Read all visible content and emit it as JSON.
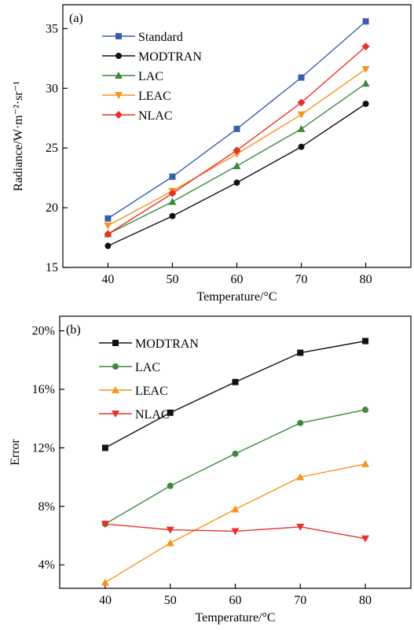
{
  "chart_data": [
    {
      "type": "line",
      "panel_label": "(a)",
      "x": [
        40,
        50,
        60,
        70,
        80
      ],
      "xlabel": "Temperature/°C",
      "ylabel": "Radiance/W·m⁻²·sr⁻¹",
      "xlim": [
        33,
        87
      ],
      "ylim": [
        15,
        37
      ],
      "xticks": [
        40,
        50,
        60,
        70,
        80
      ],
      "yticks": [
        15,
        20,
        25,
        30,
        35
      ],
      "ytick_labels": [
        "15",
        "20",
        "25",
        "30",
        "35"
      ],
      "legend_position": "top-left",
      "grid": false,
      "series": [
        {
          "name": "Standard",
          "color": "#3a5db0",
          "marker": "square",
          "values": [
            19.1,
            22.6,
            26.6,
            30.9,
            35.6
          ]
        },
        {
          "name": "MODTRAN",
          "color": "#111111",
          "marker": "circle",
          "values": [
            16.8,
            19.3,
            22.1,
            25.1,
            28.7
          ]
        },
        {
          "name": "LAC",
          "color": "#3d8a3d",
          "marker": "triangle-up",
          "values": [
            17.8,
            20.5,
            23.5,
            26.6,
            30.4
          ]
        },
        {
          "name": "LEAC",
          "color": "#f7941d",
          "marker": "triangle-down",
          "values": [
            18.5,
            21.4,
            24.5,
            27.8,
            31.6
          ]
        },
        {
          "name": "NLAC",
          "color": "#e8302a",
          "marker": "diamond",
          "values": [
            17.8,
            21.2,
            24.8,
            28.8,
            33.5
          ]
        }
      ]
    },
    {
      "type": "line",
      "panel_label": "(b)",
      "x": [
        40,
        50,
        60,
        70,
        80
      ],
      "xlabel": "Temperature/°C",
      "ylabel": "Error",
      "xlim": [
        33,
        87
      ],
      "ylim": [
        2.4,
        21.0
      ],
      "xticks": [
        40,
        50,
        60,
        70,
        80
      ],
      "yticks": [
        4,
        8,
        12,
        16,
        20
      ],
      "ytick_labels": [
        "4%",
        "8%",
        "12%",
        "16%",
        "20%"
      ],
      "legend_position": "top-left",
      "grid": false,
      "series": [
        {
          "name": "MODTRAN",
          "color": "#111111",
          "marker": "square",
          "values": [
            12.0,
            14.4,
            16.5,
            18.5,
            19.3
          ]
        },
        {
          "name": "LAC",
          "color": "#3d8a3d",
          "marker": "circle",
          "values": [
            6.8,
            9.4,
            11.6,
            13.7,
            14.6
          ]
        },
        {
          "name": "LEAC",
          "color": "#f7941d",
          "marker": "triangle-up",
          "values": [
            2.8,
            5.5,
            7.8,
            10.0,
            10.9
          ]
        },
        {
          "name": "NLAC",
          "color": "#e8302a",
          "marker": "triangle-down",
          "values": [
            6.8,
            6.4,
            6.3,
            6.6,
            5.8
          ]
        }
      ]
    }
  ]
}
